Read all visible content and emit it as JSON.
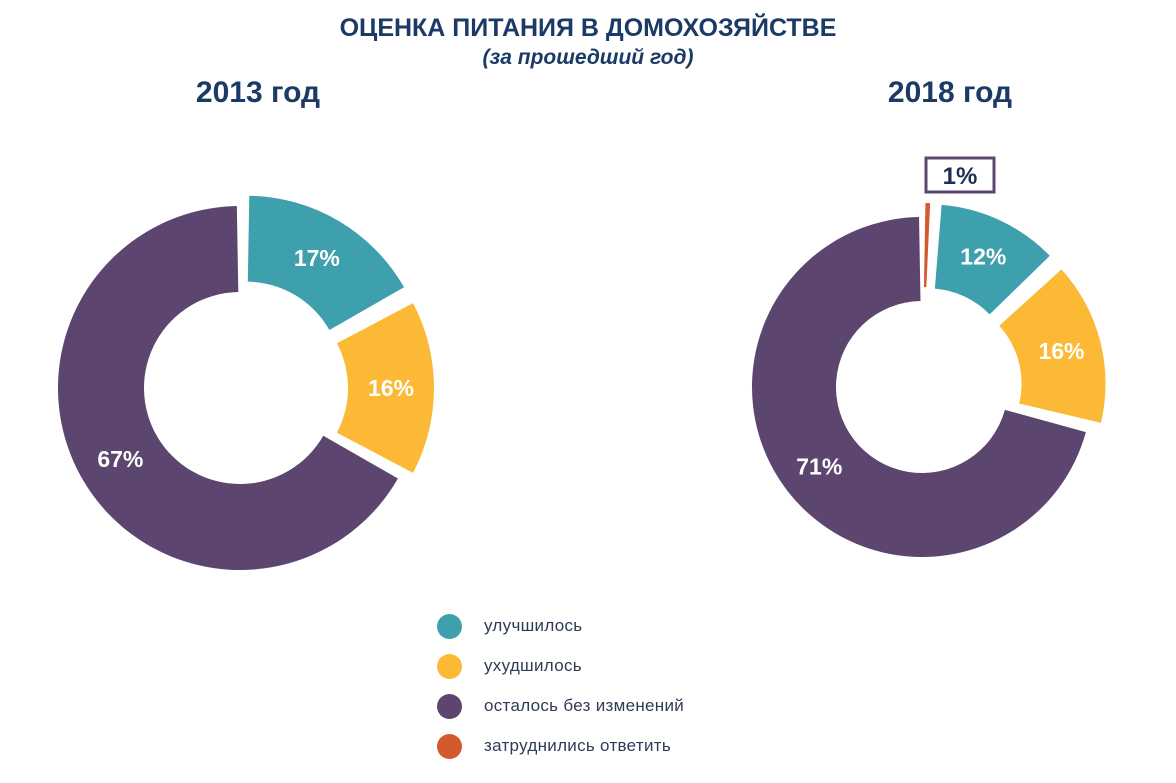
{
  "title": "ОЦЕНКА ПИТАНИЯ В ДОМОХОЗЯЙСТВЕ",
  "subtitle": "(за прошедший год)",
  "colors": {
    "improved": "#3fa0ad",
    "worsened": "#fbb935",
    "unchanged": "#5c456f",
    "hard_to_say": "#d35a2c",
    "title": "#1b3a66"
  },
  "legend": [
    {
      "label": "улучшилось",
      "color": "#3fa0ad"
    },
    {
      "label": "ухудшилось",
      "color": "#fbb935"
    },
    {
      "label": "осталось без изменений",
      "color": "#5c456f"
    },
    {
      "label": "затруднились ответить",
      "color": "#d35a2c"
    }
  ],
  "chart_data": [
    {
      "type": "pie",
      "variant": "donut",
      "title": "2013 год",
      "categories": [
        "улучшилось",
        "ухудшилось",
        "осталось без изменений"
      ],
      "values": [
        17,
        16,
        67
      ],
      "labels": [
        "17%",
        "16%",
        "67%"
      ],
      "unit": "%"
    },
    {
      "type": "pie",
      "variant": "donut",
      "title": "2018 год",
      "categories": [
        "затруднились ответить",
        "улучшилось",
        "ухудшилось",
        "осталось без изменений"
      ],
      "values": [
        1,
        12,
        16,
        71
      ],
      "labels": [
        "1%",
        "12%",
        "16%",
        "71%"
      ],
      "unit": "%"
    }
  ]
}
